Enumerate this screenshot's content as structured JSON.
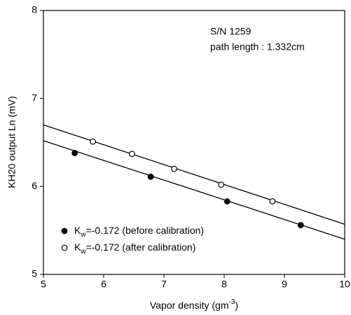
{
  "chart_data": {
    "type": "scatter",
    "x_label": {
      "main": "Vapor density (gm",
      "sup": "-3",
      "end": ")"
    },
    "y_label": "KH20 output Ln (mV)",
    "annotations": [
      "S/N 1259",
      "path length : 1.332cm"
    ],
    "xlim": [
      5,
      10
    ],
    "xticks": [
      5,
      6,
      7,
      8,
      9,
      10
    ],
    "ylim": [
      5,
      8
    ],
    "yticks": [
      5,
      6,
      7,
      8
    ],
    "series": [
      {
        "name": {
          "main": "K",
          "sub": "w",
          "rest": "=-0.172 (before calibration)"
        },
        "marker": "filled",
        "color": "#000000",
        "x": [
          5.52,
          6.78,
          8.05,
          9.27
        ],
        "values": [
          6.38,
          6.11,
          5.83,
          5.56
        ],
        "fit": {
          "x": [
            5,
            10
          ],
          "values": [
            6.52,
            5.4
          ]
        }
      },
      {
        "name": {
          "main": "K",
          "sub": "w",
          "rest": "=-0.172 (after calibration)"
        },
        "marker": "open",
        "color": "#000000",
        "x": [
          5.82,
          6.47,
          7.17,
          7.95,
          8.8
        ],
        "values": [
          6.51,
          6.37,
          6.2,
          6.02,
          5.83
        ],
        "fit": {
          "x": [
            5,
            10
          ],
          "values": [
            6.7,
            5.57
          ]
        }
      }
    ]
  }
}
